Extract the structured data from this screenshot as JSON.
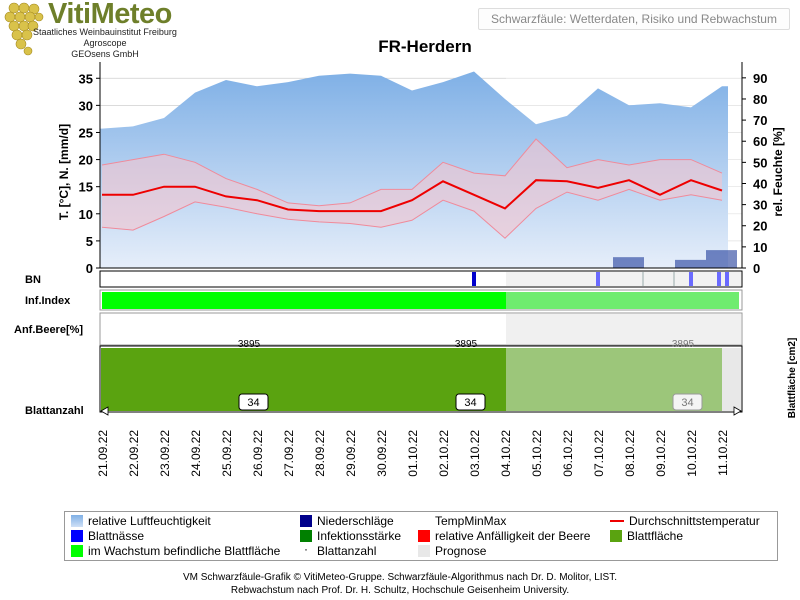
{
  "header": {
    "logo_title": "VitiMeteo",
    "logo_lines": [
      "Staatliches Weinbauinstitut Freiburg",
      "Agroscope",
      "GEOsens GmbH"
    ],
    "subtitle": "Schwarzfäule: Wetterdaten, Risiko und Rebwachstum"
  },
  "colors": {
    "humidity": "#a9c9ee",
    "humidity_top": "#7fb0e6",
    "precip": "#00008b",
    "leaf_wetness": "#0000ff",
    "temp_band": "#f4c4cf",
    "infection": "#008000",
    "avg_temp": "#ee0000",
    "susceptibility": "#ff0000",
    "in_growth_leaf": "#00ff00",
    "leaf_area": "#5aa310",
    "forecast": "#e8e8e8"
  },
  "chart_data": {
    "type": "line",
    "title": "FR-Herdern",
    "dates": [
      "21.09.22",
      "22.09.22",
      "23.09.22",
      "24.09.22",
      "25.09.22",
      "26.09.22",
      "27.09.22",
      "28.09.22",
      "29.09.22",
      "30.09.22",
      "01.10.22",
      "02.10.22",
      "03.10.22",
      "04.10.22",
      "05.10.22",
      "06.10.22",
      "07.10.22",
      "08.10.22",
      "09.10.22",
      "10.10.22",
      "11.10.22"
    ],
    "forecast_start": "04.10.22",
    "y_left_label": "T. [°C], N. [mm/d]",
    "y_left_ticks": [
      0,
      5,
      10,
      15,
      20,
      25,
      30,
      35
    ],
    "y_left_range": [
      0,
      38
    ],
    "y_right_label": "rel. Feuchte [%]",
    "y_right_ticks": [
      0,
      10,
      20,
      30,
      40,
      50,
      60,
      70,
      80,
      90
    ],
    "y_right_range": [
      0,
      97.5
    ],
    "blattflaeche_label": "Blattfläche [cm2]",
    "series": [
      {
        "name": "relative Luftfeuchtigkeit",
        "values": [
          66,
          67,
          71,
          83,
          89,
          86,
          88,
          91,
          92,
          91,
          84,
          88,
          93,
          80,
          68,
          72,
          85,
          77,
          78,
          76,
          86
        ]
      },
      {
        "name": "TempMinMax",
        "min": [
          7.5,
          7.0,
          9.5,
          12.2,
          11.2,
          10.0,
          9.0,
          8.5,
          8.2,
          7.5,
          8.8,
          12.5,
          10.5,
          5.5,
          11.0,
          14.0,
          12.5,
          14.5,
          12.5,
          13.5,
          12.5
        ],
        "max": [
          19.0,
          20.0,
          21.0,
          19.5,
          16.5,
          14.5,
          12.0,
          11.5,
          12.0,
          14.5,
          14.5,
          19.5,
          17.5,
          17.0,
          23.8,
          18.5,
          20.0,
          19.0,
          20.0,
          20.0,
          17.5
        ]
      },
      {
        "name": "Durchschnittstemperatur",
        "values": [
          13.5,
          13.5,
          15.0,
          15.0,
          13.2,
          12.5,
          10.8,
          10.5,
          10.5,
          10.5,
          12.5,
          16.0,
          13.5,
          11.0,
          16.2,
          16.0,
          14.8,
          16.2,
          13.5,
          16.2,
          14.3
        ]
      },
      {
        "name": "Niederschläge",
        "values": [
          0,
          0,
          0,
          0,
          0,
          0,
          0,
          0,
          0,
          0,
          0,
          0,
          0,
          0,
          0,
          0,
          0,
          2.0,
          0,
          1.5,
          3.3
        ]
      }
    ],
    "bn_label": "BN",
    "blattnaesse_days": [
      "03.10.22",
      "07.10.22",
      "10.10.22",
      "11.10.22"
    ],
    "inf_index_label": "Inf.Index",
    "anf_beere_label": "Anf.Beere[%]",
    "leaf_area_values": [
      {
        "date": "26.09.22",
        "value": "3895"
      },
      {
        "date": "03.10.22",
        "value": "3895"
      },
      {
        "date": "10.10.22",
        "value": "3895"
      }
    ],
    "blattanzahl_label": "Blattanzahl",
    "leaf_count_values": [
      {
        "date": "26.09.22",
        "value": "34"
      },
      {
        "date": "03.10.22",
        "value": "34"
      },
      {
        "date": "10.10.22",
        "value": "34"
      }
    ]
  },
  "legend": [
    {
      "label": "relative Luftfeuchtigkeit",
      "swatch": "humidity"
    },
    {
      "label": "Niederschläge",
      "swatch": "precip"
    },
    {
      "label": "TempMinMax",
      "swatch": "none"
    },
    {
      "label": "Durchschnittstemperatur",
      "swatch": "line"
    },
    {
      "label": "Blattnässe",
      "swatch": "leaf_wetness"
    },
    {
      "label": "Infektionsstärke",
      "swatch": "infection"
    },
    {
      "label": "relative Anfälligkeit der Beere",
      "swatch": "susceptibility"
    },
    {
      "label": "Blattfläche",
      "swatch": "leaf_area"
    },
    {
      "label": "im Wachstum befindliche Blattfläche",
      "swatch": "in_growth_leaf"
    },
    {
      "label": "Blattanzahl",
      "swatch": "dot"
    },
    {
      "label": "Prognose",
      "swatch": "forecast"
    }
  ],
  "footer": [
    "VM Schwarzfäule-Grafik © VitiMeteo-Gruppe. Schwarzfäule-Algorithmus nach Dr. D. Molitor, LIST.",
    "Rebwachstum nach Prof. Dr. H. Schultz, Hochschule Geisenheim University."
  ]
}
